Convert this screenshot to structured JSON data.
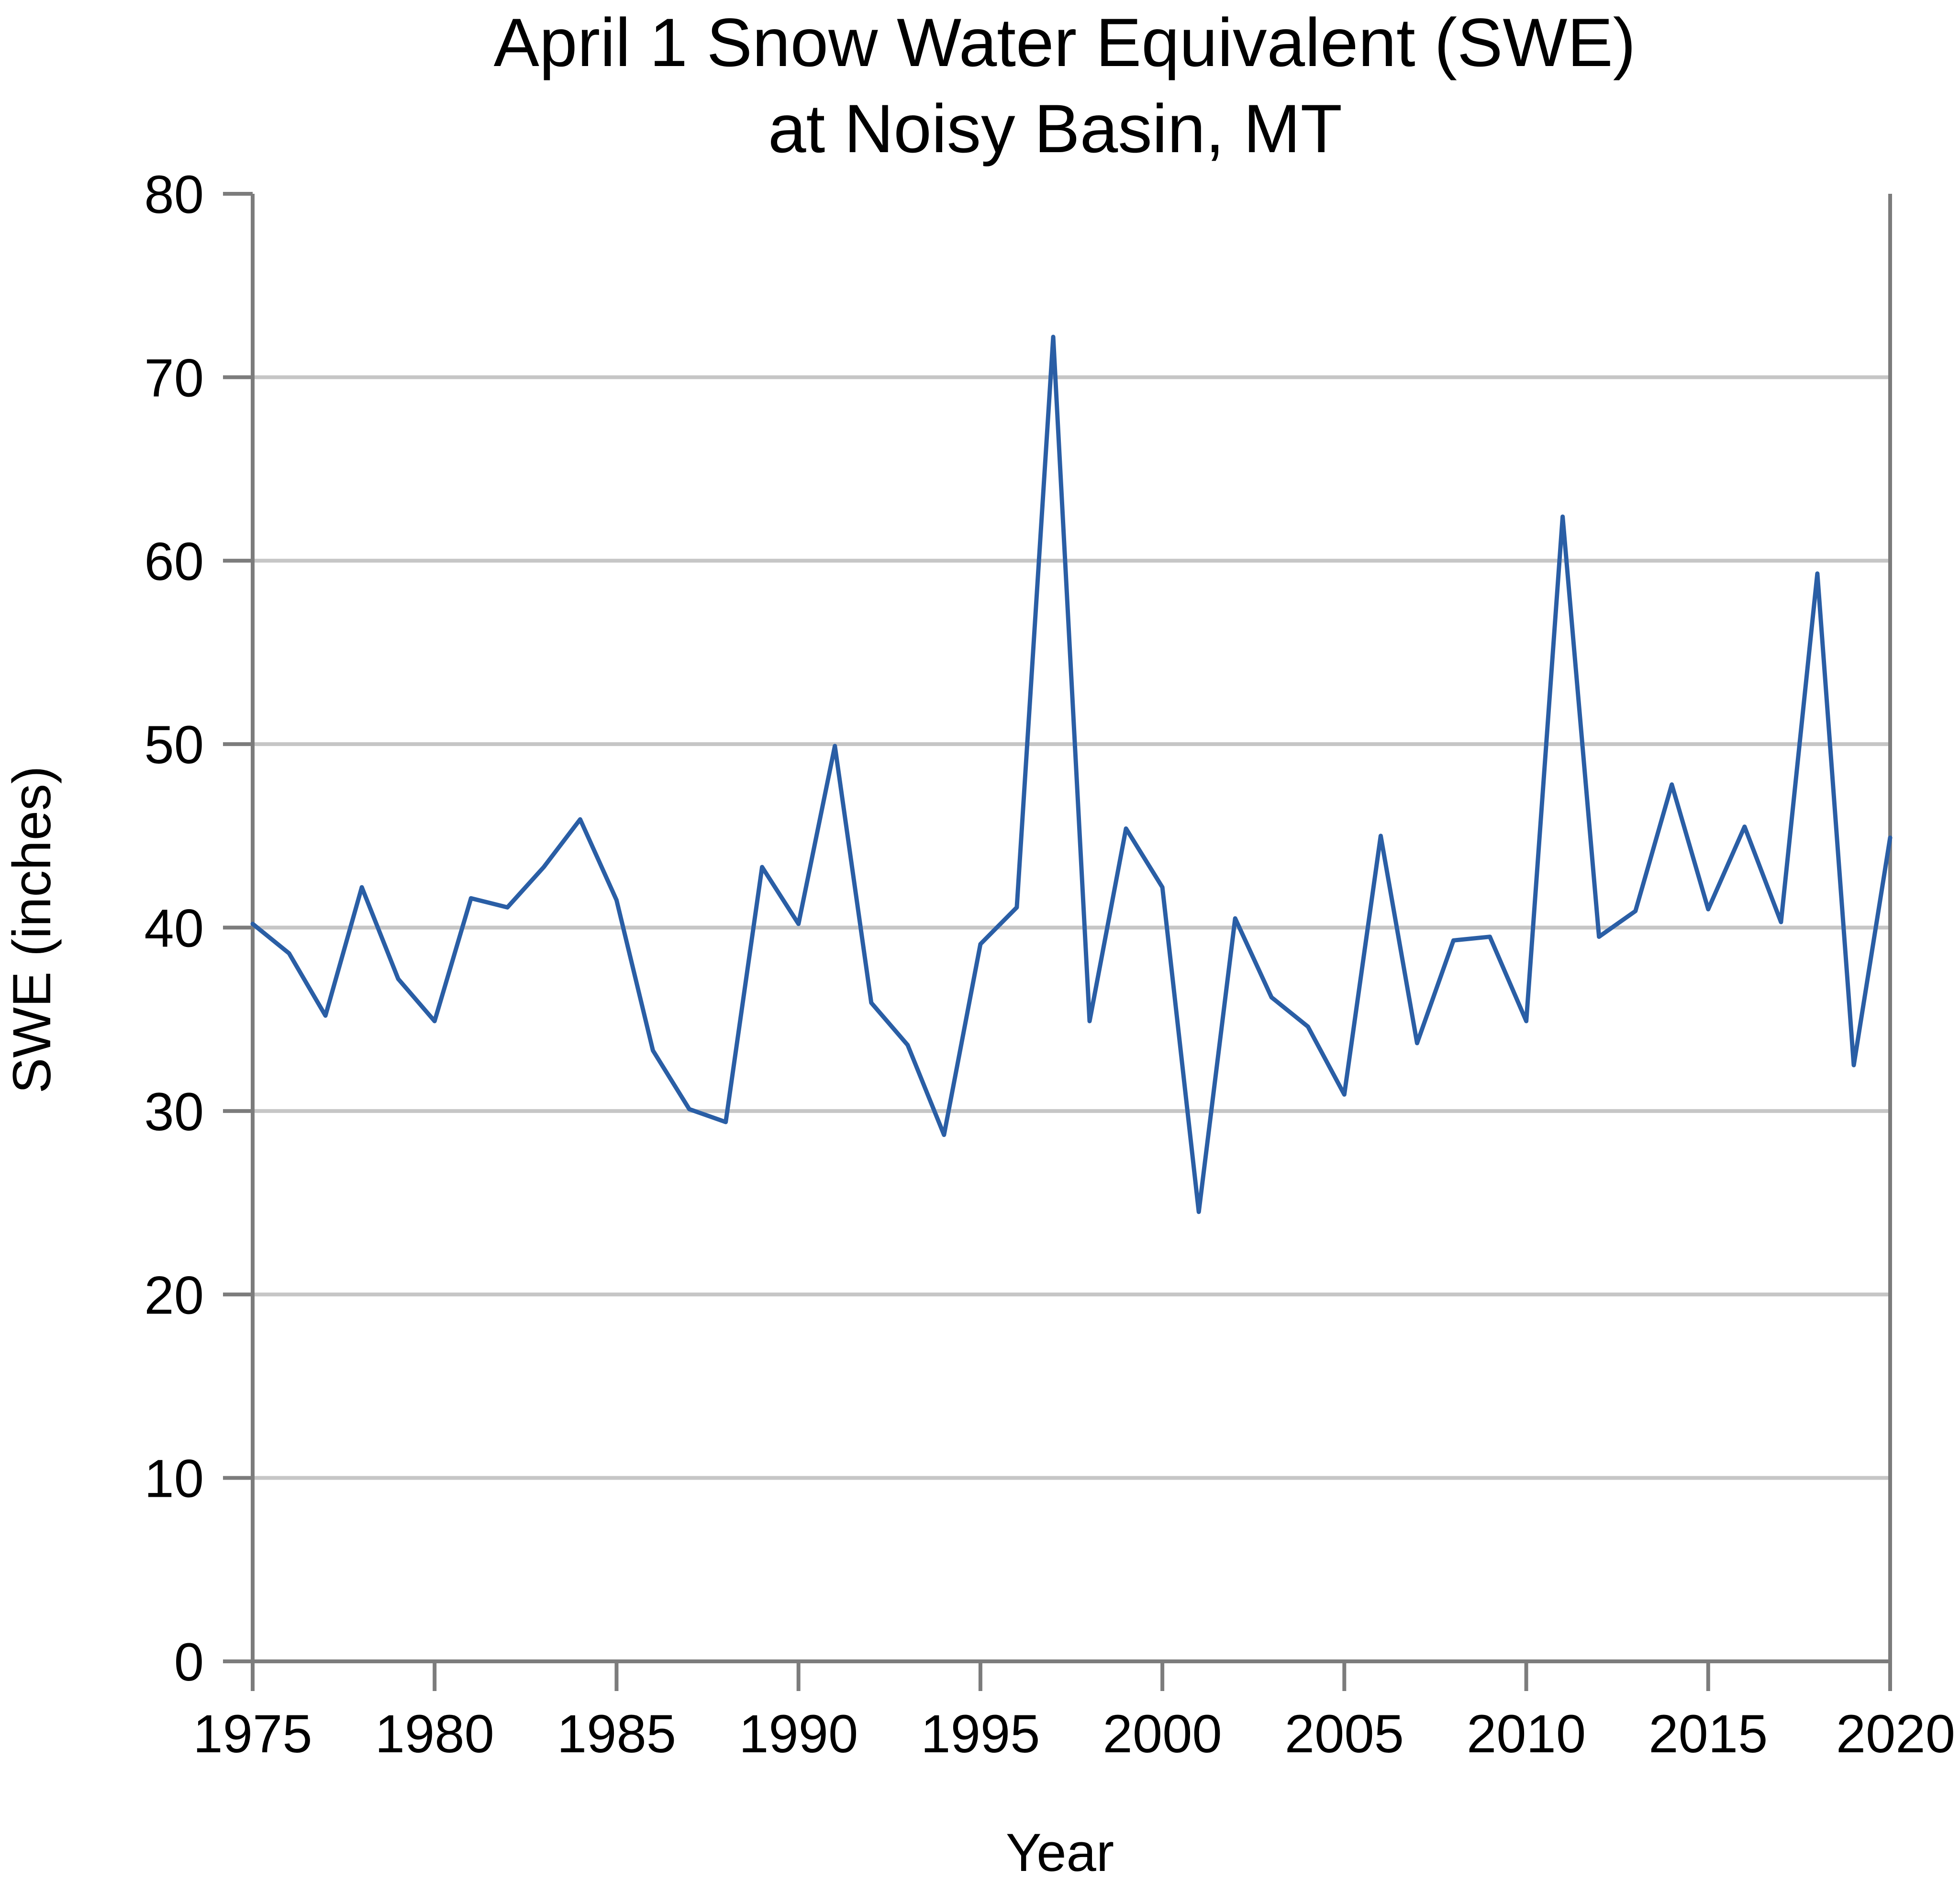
{
  "chart_data": {
    "type": "line",
    "title": "April 1 Snow Water Equivalent (SWE)",
    "subtitle": "at Noisy Basin, MT",
    "xlabel": "Year",
    "ylabel": "SWE (inches)",
    "xlim": [
      1975,
      2020
    ],
    "ylim": [
      0,
      80
    ],
    "xticks": [
      1975,
      1980,
      1985,
      1990,
      1995,
      2000,
      2005,
      2010,
      2015,
      2020
    ],
    "yticks": [
      0,
      10,
      20,
      30,
      40,
      50,
      60,
      70,
      80
    ],
    "grid": "horizontal",
    "legend": "none",
    "series_color": "#2a5ea5",
    "x": [
      1975,
      1976,
      1977,
      1978,
      1979,
      1980,
      1981,
      1982,
      1983,
      1984,
      1985,
      1986,
      1987,
      1988,
      1989,
      1990,
      1991,
      1992,
      1993,
      1994,
      1995,
      1996,
      1997,
      1998,
      1999,
      2000,
      2001,
      2002,
      2003,
      2004,
      2005,
      2006,
      2007,
      2008,
      2009,
      2010,
      2011,
      2012,
      2013,
      2014,
      2015,
      2016,
      2017,
      2018,
      2019,
      2020
    ],
    "values": [
      40.2,
      38.6,
      35.2,
      42.2,
      37.2,
      34.9,
      41.6,
      41.1,
      43.3,
      45.9,
      41.5,
      33.3,
      30.1,
      29.4,
      43.3,
      40.2,
      49.9,
      35.9,
      33.6,
      28.7,
      39.1,
      41.1,
      72.2,
      34.9,
      45.4,
      42.2,
      24.5,
      40.5,
      36.2,
      34.6,
      30.9,
      45.0,
      33.7,
      39.3,
      39.5,
      34.9,
      62.4,
      39.5,
      40.9,
      47.8,
      41.0,
      45.5,
      40.3,
      59.3,
      32.5,
      44.9
    ]
  }
}
